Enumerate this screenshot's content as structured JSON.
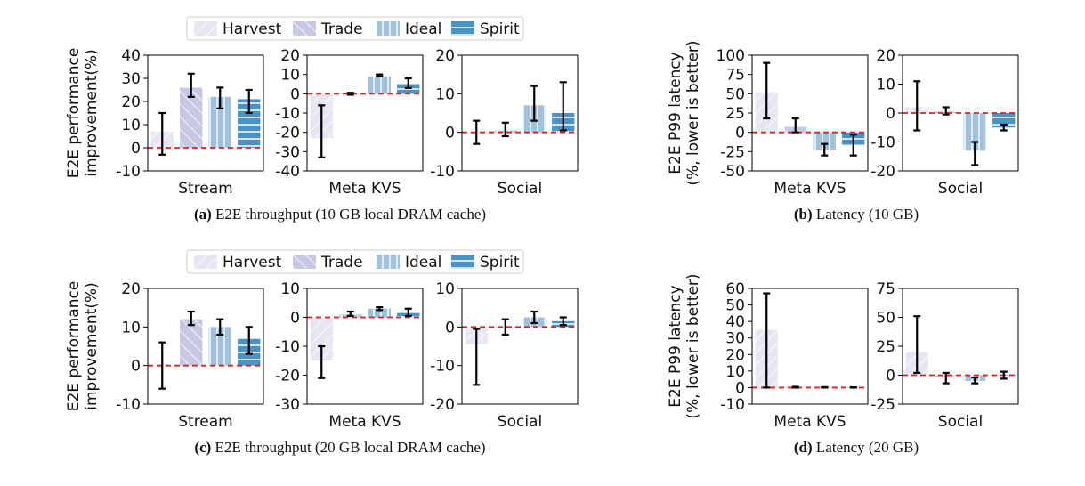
{
  "legend": {
    "labels": [
      "Harvest",
      "Trade",
      "Ideal",
      "Spirit"
    ]
  },
  "colors": {
    "harvest": "#e8e6f3",
    "trade": "#c6c8e4",
    "ideal": "#9fc1de",
    "spirit": "#4a93c7",
    "baseline": "#e02020",
    "error": "#000000"
  },
  "captions": {
    "a": {
      "tag": "(a)",
      "text": "E2E throughput (10 GB local DRAM cache)"
    },
    "b": {
      "tag": "(b)",
      "text": "Latency (10 GB)"
    },
    "c": {
      "tag": "(c)",
      "text": "E2E throughput (20 GB local DRAM cache)"
    },
    "d": {
      "tag": "(d)",
      "text": "Latency (20 GB)"
    }
  },
  "chart_data": [
    {
      "id": "a",
      "type": "bar",
      "ylabel": [
        "E2E performance",
        "improvement(%)"
      ],
      "series_names": [
        "Harvest",
        "Trade",
        "Ideal",
        "Spirit"
      ],
      "panels": [
        {
          "category": "Stream",
          "ylim": [
            -10,
            40
          ],
          "yticks": [
            -10,
            0,
            10,
            20,
            30,
            40
          ],
          "values": [
            7,
            26,
            22,
            21
          ],
          "err_low": [
            -3,
            22,
            17,
            15
          ],
          "err_high": [
            15,
            32,
            26,
            25
          ]
        },
        {
          "category": "Meta KVS",
          "ylim": [
            -40,
            20
          ],
          "yticks": [
            -40,
            -30,
            -20,
            -10,
            0,
            10,
            20
          ],
          "values": [
            -23,
            0,
            9,
            5
          ],
          "err_low": [
            -33,
            -0.5,
            9,
            3
          ],
          "err_high": [
            -6,
            0.5,
            10,
            8
          ]
        },
        {
          "category": "Social",
          "ylim": [
            -10,
            20
          ],
          "yticks": [
            -10,
            0,
            10,
            20
          ],
          "values": [
            0,
            0.5,
            7,
            5
          ],
          "err_low": [
            -3,
            -1,
            3,
            0.5
          ],
          "err_high": [
            3,
            2.5,
            12,
            13
          ]
        }
      ]
    },
    {
      "id": "b",
      "type": "bar",
      "ylabel": [
        "E2E P99 latency",
        "(%, lower is better)"
      ],
      "series_names": [
        "Harvest",
        "Trade",
        "Ideal",
        "Spirit"
      ],
      "panels": [
        {
          "category": "Meta KVS",
          "ylim": [
            -50,
            100
          ],
          "yticks": [
            -50,
            -25,
            0,
            25,
            50,
            75,
            100
          ],
          "values": [
            52,
            7,
            -23,
            -16
          ],
          "err_low": [
            18,
            0,
            -30,
            -30
          ],
          "err_high": [
            90,
            18,
            -15,
            -3
          ]
        },
        {
          "category": "Social",
          "ylim": [
            -20,
            20
          ],
          "yticks": [
            -20,
            -10,
            0,
            10,
            20
          ],
          "values": [
            2,
            0.5,
            -13,
            -5
          ],
          "err_low": [
            -6,
            -0.5,
            -18,
            -6
          ],
          "err_high": [
            11,
            2,
            -10,
            -4
          ]
        }
      ]
    },
    {
      "id": "c",
      "type": "bar",
      "ylabel": [
        "E2E performance",
        "improvement(%)"
      ],
      "series_names": [
        "Harvest",
        "Trade",
        "Ideal",
        "Spirit"
      ],
      "panels": [
        {
          "category": "Stream",
          "ylim": [
            -10,
            20
          ],
          "yticks": [
            -10,
            0,
            10,
            20
          ],
          "values": [
            0,
            12,
            10,
            7
          ],
          "err_low": [
            -6,
            10.5,
            8,
            3
          ],
          "err_high": [
            6,
            14,
            12,
            10
          ]
        },
        {
          "category": "Meta KVS",
          "ylim": [
            -30,
            10
          ],
          "yticks": [
            -30,
            -20,
            -10,
            0,
            10
          ],
          "values": [
            -15,
            1,
            3,
            1.5
          ],
          "err_low": [
            -21,
            0.5,
            2.5,
            0.5
          ],
          "err_high": [
            -10,
            2,
            3.5,
            3
          ]
        },
        {
          "category": "Social",
          "ylim": [
            -20,
            10
          ],
          "yticks": [
            -20,
            -10,
            0,
            10
          ],
          "values": [
            -4.5,
            0,
            2.5,
            1.5
          ],
          "err_low": [
            -15,
            -2,
            1,
            0.5
          ],
          "err_high": [
            -0.5,
            2,
            4,
            2.5
          ]
        }
      ]
    },
    {
      "id": "d",
      "type": "bar",
      "ylabel": [
        "E2E P99 latency",
        "(%, lower is better)"
      ],
      "series_names": [
        "Harvest",
        "Trade",
        "Ideal",
        "Spirit"
      ],
      "panels": [
        {
          "category": "Meta KVS",
          "ylim": [
            -10,
            60
          ],
          "yticks": [
            -10,
            0,
            10,
            20,
            30,
            40,
            50,
            60
          ],
          "values": [
            35,
            0.5,
            0.3,
            0.2
          ],
          "err_low": [
            0,
            0,
            0,
            0
          ],
          "err_high": [
            57,
            0.5,
            0.3,
            0.2
          ]
        },
        {
          "category": "Social",
          "ylim": [
            -25,
            75
          ],
          "yticks": [
            -25,
            0,
            25,
            50,
            75
          ],
          "values": [
            20,
            -2,
            -5,
            0.5
          ],
          "err_low": [
            2,
            -7,
            -7,
            -3
          ],
          "err_high": [
            51,
            2,
            -2,
            3
          ]
        }
      ]
    }
  ]
}
